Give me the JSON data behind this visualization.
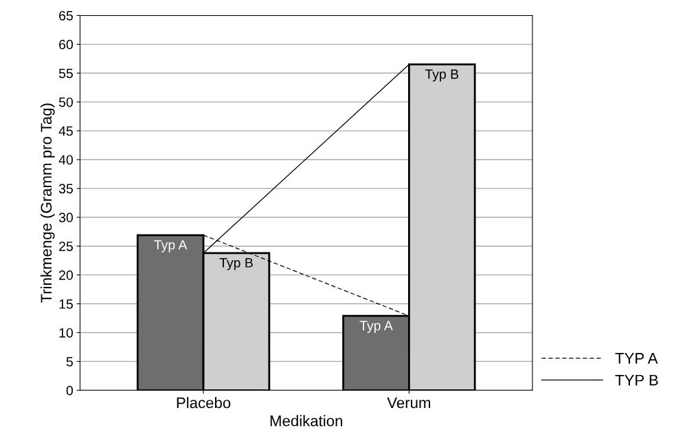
{
  "chart_data": {
    "type": "bar",
    "xlabel": "Medikation",
    "ylabel": "Trinkmenge (Gramm pro Tag)",
    "categories": [
      "Placebo",
      "Verum"
    ],
    "series": [
      {
        "name": "Typ A",
        "color": "#6e6e6e",
        "values": [
          26.9,
          12.9
        ]
      },
      {
        "name": "Typ B",
        "color": "#cfcfcf",
        "values": [
          23.8,
          56.5
        ]
      },
      {
        "name": "TYP A",
        "type": "line",
        "line_style": "dashed",
        "color": "#000000",
        "values": [
          26.9,
          12.9
        ]
      },
      {
        "name": "TYP B",
        "type": "line",
        "line_style": "solid",
        "color": "#000000",
        "values": [
          23.8,
          56.5
        ]
      }
    ],
    "ylim": [
      0,
      65
    ],
    "yticks": [
      0,
      5,
      10,
      15,
      20,
      25,
      30,
      35,
      40,
      45,
      50,
      55,
      60,
      65
    ],
    "grid": "y",
    "legend": "bottom right"
  }
}
